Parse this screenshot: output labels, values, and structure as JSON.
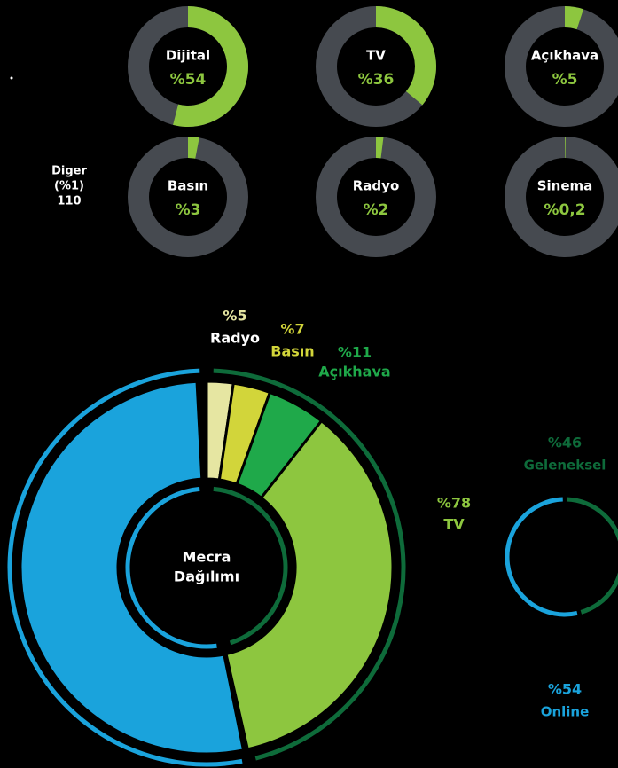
{
  "chart_data": [
    {
      "type": "donut",
      "categories": [
        "Dijital",
        "TV",
        "Açıkhava",
        "Basın",
        "Radyo",
        "Sinema"
      ],
      "values": [
        54,
        36,
        5,
        3,
        2,
        0.2
      ],
      "value_labels": [
        "%54",
        "%36",
        "%5",
        "%3",
        "%2",
        "%0,2"
      ],
      "color": "#8dc63f",
      "track_color": "#464a50",
      "annotations": [
        "Diger",
        "(%1)",
        "110"
      ]
    },
    {
      "type": "sunburst",
      "title": [
        "Mecra",
        "Dağılımı"
      ],
      "groups": {
        "categories": [
          "Geleneksel",
          "Online"
        ],
        "values": [
          46,
          54
        ],
        "colors": [
          "#0e6b3a",
          "#1aa3dc"
        ]
      },
      "slices": {
        "categories": [
          "Radyo",
          "Basın",
          "Açıkhava",
          "TV"
        ],
        "values": [
          5,
          7,
          11,
          78
        ],
        "value_labels": [
          "%5",
          "%7",
          "%11",
          "%78"
        ],
        "colors": [
          "#e6e6a2",
          "#d2d53a",
          "#1fa94a",
          "#8dc63f"
        ]
      }
    },
    {
      "type": "ring",
      "categories": [
        "Geleneksel",
        "Online"
      ],
      "values": [
        46,
        54
      ],
      "value_labels": [
        "%46",
        "%54"
      ],
      "colors": [
        "#0e6b3a",
        "#1aa3dc"
      ]
    }
  ]
}
